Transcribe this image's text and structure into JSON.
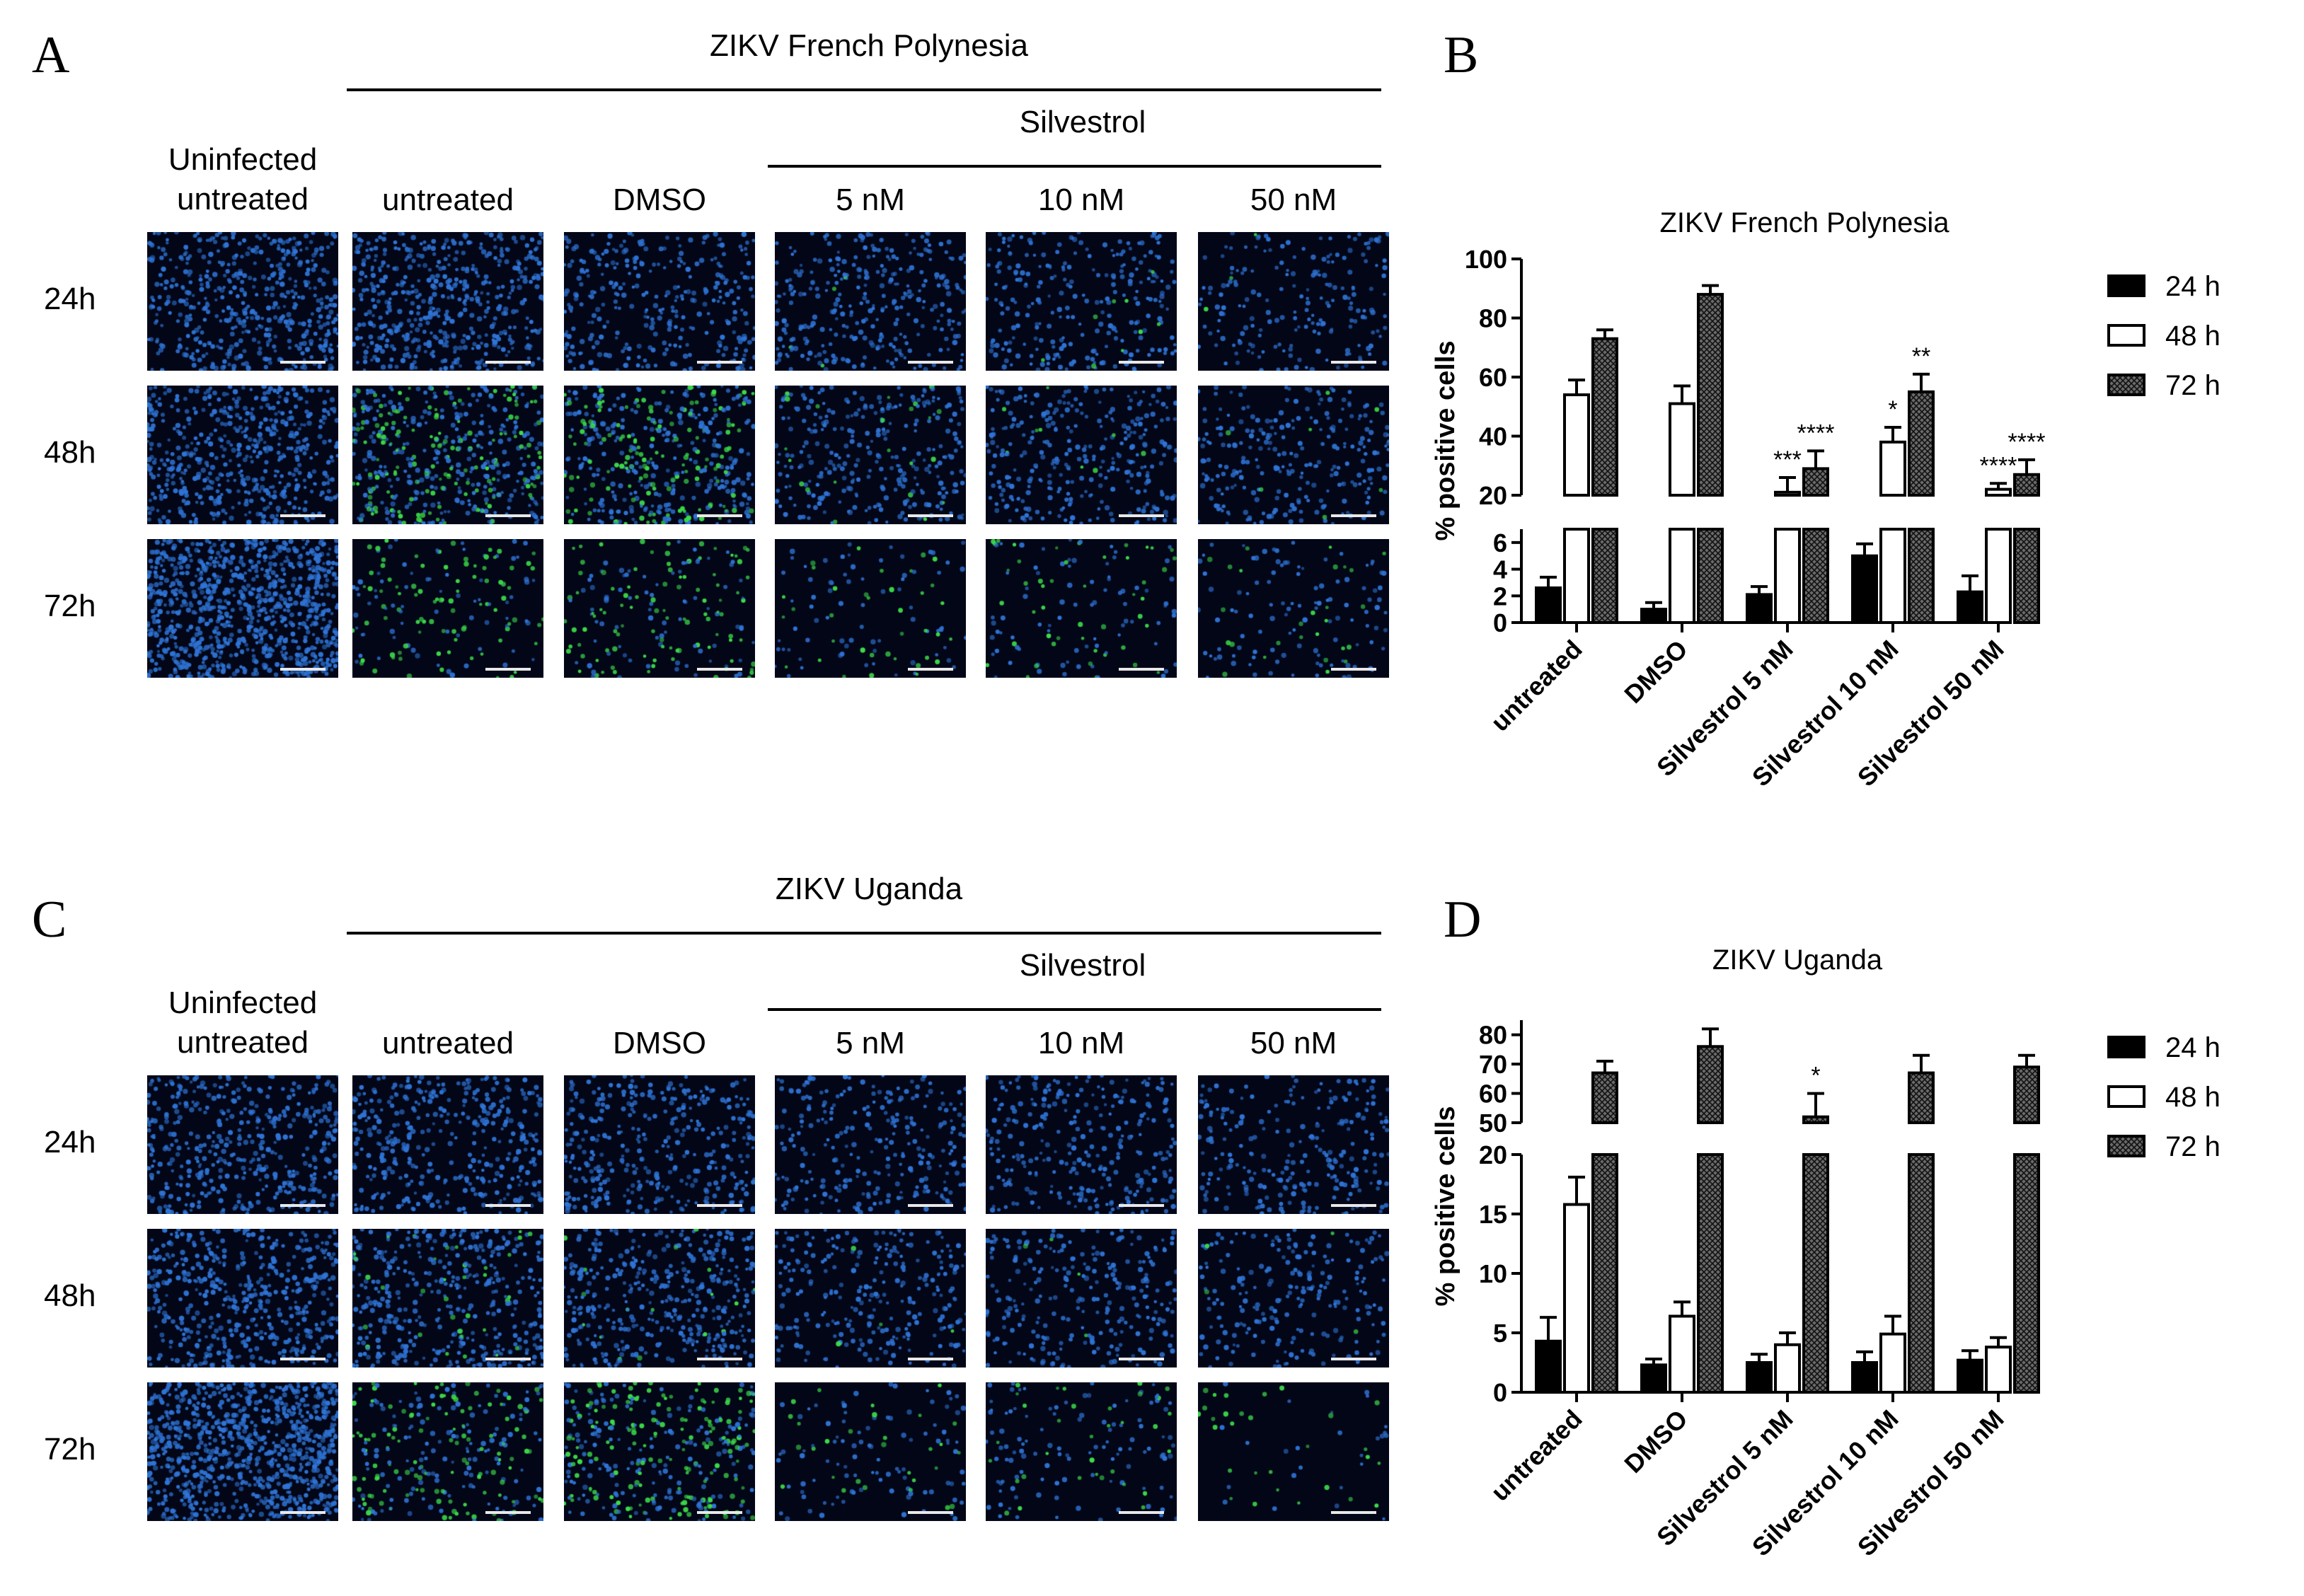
{
  "figure": {
    "panel_labels": {
      "a": "A",
      "b": "B",
      "c": "C",
      "d": "D"
    },
    "colors": {
      "nuclei": "#2f74d6",
      "infected": "#3ddc4a",
      "background": "#020617"
    }
  },
  "panel_a": {
    "virus_header": "ZIKV French Polynesia",
    "silvestrol_header": "Silvestrol",
    "col_headers": [
      "Uninfected\nuntreated",
      "untreated",
      "DMSO",
      "5 nM",
      "10 nM",
      "50 nM"
    ],
    "row_labels": [
      "24h",
      "48h",
      "72h"
    ],
    "images": [
      {
        "density": 0.55,
        "green": 0.0
      },
      {
        "density": 0.55,
        "green": 0.0
      },
      {
        "density": 0.35,
        "green": 0.0
      },
      {
        "density": 0.35,
        "green": 0.01
      },
      {
        "density": 0.3,
        "green": 0.03
      },
      {
        "density": 0.22,
        "green": 0.01
      },
      {
        "density": 0.6,
        "green": 0.0
      },
      {
        "density": 0.55,
        "green": 0.35
      },
      {
        "density": 0.5,
        "green": 0.3
      },
      {
        "density": 0.35,
        "green": 0.08
      },
      {
        "density": 0.35,
        "green": 0.04
      },
      {
        "density": 0.3,
        "green": 0.04
      },
      {
        "density": 1.0,
        "green": 0.0
      },
      {
        "density": 0.18,
        "green": 0.5
      },
      {
        "density": 0.2,
        "green": 0.5
      },
      {
        "density": 0.12,
        "green": 0.3
      },
      {
        "density": 0.14,
        "green": 0.35
      },
      {
        "density": 0.15,
        "green": 0.2
      }
    ]
  },
  "panel_c": {
    "virus_header": "ZIKV Uganda",
    "silvestrol_header": "Silvestrol",
    "col_headers": [
      "Uninfected\nuntreated",
      "untreated",
      "DMSO",
      "5 nM",
      "10 nM",
      "50 nM"
    ],
    "row_labels": [
      "24h",
      "48h",
      "72h"
    ],
    "images": [
      {
        "density": 0.5,
        "green": 0.0
      },
      {
        "density": 0.45,
        "green": 0.0
      },
      {
        "density": 0.4,
        "green": 0.0
      },
      {
        "density": 0.3,
        "green": 0.0
      },
      {
        "density": 0.32,
        "green": 0.0
      },
      {
        "density": 0.28,
        "green": 0.0
      },
      {
        "density": 0.55,
        "green": 0.0
      },
      {
        "density": 0.5,
        "green": 0.08
      },
      {
        "density": 0.45,
        "green": 0.04
      },
      {
        "density": 0.3,
        "green": 0.01
      },
      {
        "density": 0.3,
        "green": 0.01
      },
      {
        "density": 0.25,
        "green": 0.02
      },
      {
        "density": 1.0,
        "green": 0.0
      },
      {
        "density": 0.3,
        "green": 0.4
      },
      {
        "density": 0.4,
        "green": 0.45
      },
      {
        "density": 0.14,
        "green": 0.25
      },
      {
        "density": 0.16,
        "green": 0.25
      },
      {
        "density": 0.06,
        "green": 0.5
      }
    ]
  },
  "chart_data": [
    {
      "type": "bar",
      "title": "ZIKV French Polynesia",
      "ylabel": "% positive cells",
      "categories": [
        "untreated",
        "DMSO",
        "Silvestrol 5 nM",
        "Silvestrol 10 nM",
        "Silvestrol 50 nM"
      ],
      "broken_axis": {
        "lower": [
          0,
          7
        ],
        "upper": [
          20,
          100
        ]
      },
      "yticks_lower": [
        "0",
        "2",
        "4",
        "6"
      ],
      "yticks_upper": [
        "20",
        "40",
        "60",
        "80",
        "100"
      ],
      "legend_position": "right",
      "series": [
        {
          "name": "24 h",
          "fill": "solid-black",
          "values": [
            2.6,
            1.0,
            2.1,
            5.0,
            2.3
          ],
          "errors": [
            0.8,
            0.5,
            0.6,
            0.9,
            1.2
          ],
          "significance": [
            "",
            "",
            "",
            "",
            ""
          ]
        },
        {
          "name": "48 h",
          "fill": "white",
          "values": [
            54,
            51,
            21,
            38,
            22
          ],
          "errors": [
            5,
            6,
            5,
            5,
            2
          ],
          "significance": [
            "",
            "",
            "***",
            "*",
            "****"
          ]
        },
        {
          "name": "72 h",
          "fill": "crosshatch",
          "values": [
            73,
            88,
            29,
            55,
            27
          ],
          "errors": [
            3,
            3,
            6,
            6,
            5
          ],
          "significance": [
            "",
            "",
            "****",
            "**",
            "****"
          ]
        }
      ]
    },
    {
      "type": "bar",
      "title": "ZIKV Uganda",
      "ylabel": "% positive cells",
      "categories": [
        "untreated",
        "DMSO",
        "Silvestrol 5 nM",
        "Silvestrol 10 nM",
        "Silvestrol 50 nM"
      ],
      "broken_axis": {
        "lower": [
          0,
          20
        ],
        "upper": [
          50,
          85
        ]
      },
      "yticks_lower": [
        "0",
        "5",
        "10",
        "15",
        "20"
      ],
      "yticks_upper": [
        "50",
        "60",
        "70",
        "80"
      ],
      "legend_position": "right",
      "series": [
        {
          "name": "24 h",
          "fill": "solid-black",
          "values": [
            4.3,
            2.3,
            2.5,
            2.5,
            2.7
          ],
          "errors": [
            2.0,
            0.5,
            0.7,
            0.9,
            0.8
          ],
          "significance": [
            "",
            "",
            "",
            "",
            ""
          ]
        },
        {
          "name": "48 h",
          "fill": "white",
          "values": [
            15.8,
            6.4,
            4.0,
            4.9,
            3.8
          ],
          "errors": [
            2.3,
            1.2,
            1.0,
            1.5,
            0.8
          ],
          "significance": [
            "",
            "",
            "",
            "",
            ""
          ]
        },
        {
          "name": "72 h",
          "fill": "crosshatch",
          "values": [
            67,
            76,
            52,
            67,
            69
          ],
          "errors": [
            4,
            6,
            8,
            6,
            4
          ],
          "significance": [
            "",
            "",
            "*",
            "",
            ""
          ]
        }
      ]
    }
  ]
}
